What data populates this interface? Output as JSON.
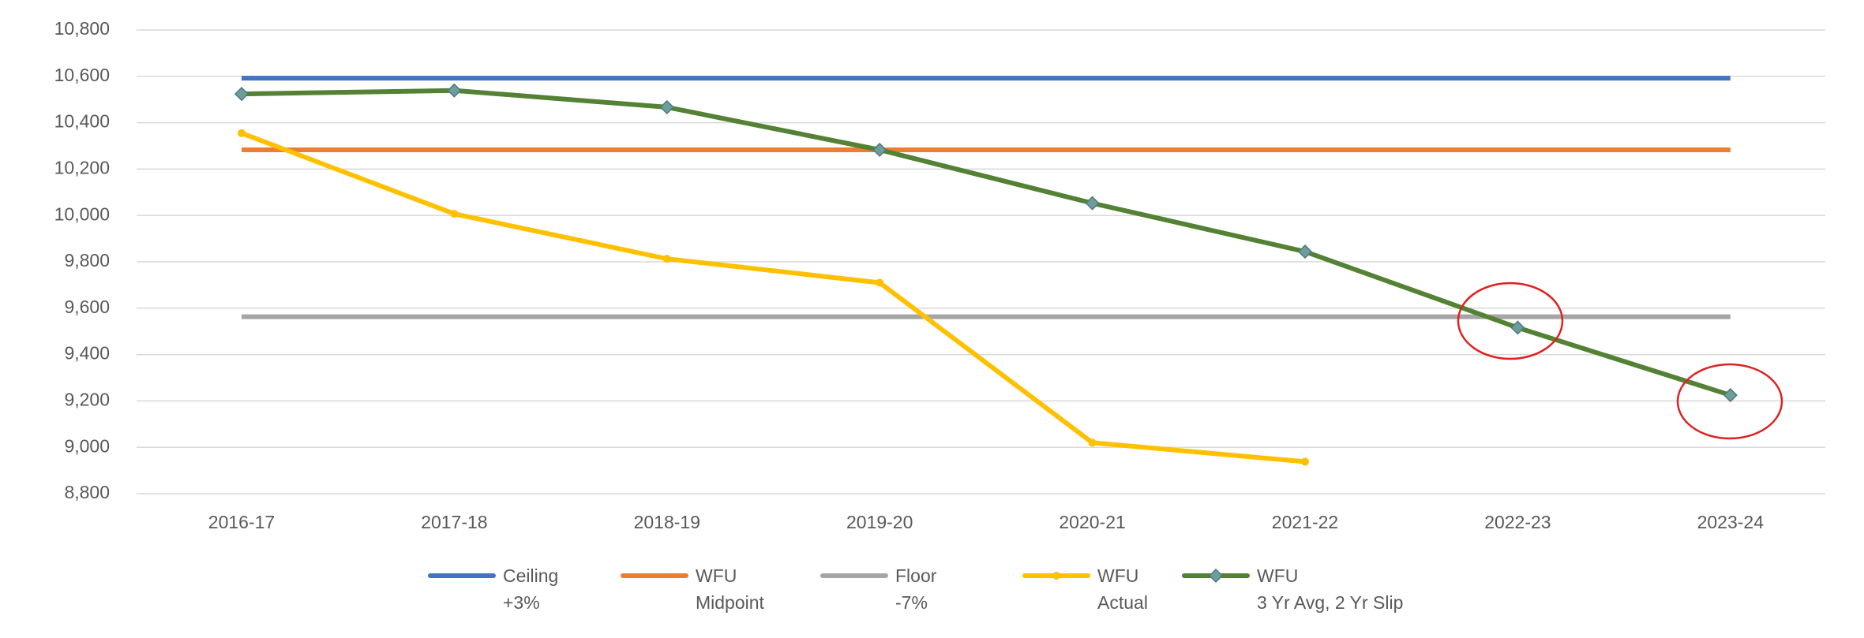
{
  "chart_data": {
    "type": "line",
    "categories": [
      "2016-17",
      "2017-18",
      "2018-19",
      "2019-20",
      "2020-21",
      "2021-22",
      "2022-23",
      "2023-24"
    ],
    "ylim": [
      8800,
      10800
    ],
    "yticks": [
      {
        "value": 8800,
        "label": "8,800"
      },
      {
        "value": 9000,
        "label": "9,000"
      },
      {
        "value": 9200,
        "label": "9,200"
      },
      {
        "value": 9400,
        "label": "9,400"
      },
      {
        "value": 9600,
        "label": "9,600"
      },
      {
        "value": 9800,
        "label": "9,800"
      },
      {
        "value": 10000,
        "label": "10,000"
      },
      {
        "value": 10200,
        "label": "10,200"
      },
      {
        "value": 10400,
        "label": "10,400"
      },
      {
        "value": 10600,
        "label": "10,600"
      },
      {
        "value": 10800,
        "label": "10,800"
      }
    ],
    "grid": true,
    "legend": "bottom",
    "series": [
      {
        "name": "Ceiling\n+3%",
        "color": "#4472c4",
        "values": [
          10592,
          10592,
          10592,
          10592,
          10592,
          10592,
          10592,
          10592
        ]
      },
      {
        "name": "WFU\nMidpoint",
        "color": "#ed7d31",
        "values": [
          10283,
          10283,
          10283,
          10283,
          10283,
          10283,
          10283,
          10283
        ]
      },
      {
        "name": "Floor\n-7%",
        "color": "#a5a5a5",
        "values": [
          9563,
          9563,
          9563,
          9563,
          9563,
          9563,
          9563,
          9563
        ]
      },
      {
        "name": "WFU\nActual",
        "color": "#ffc000",
        "values": [
          10355,
          10007,
          9813,
          9710,
          9020,
          8938,
          null,
          null
        ]
      },
      {
        "name": "WFU\n3 Yr Avg, 2 Yr Slip",
        "color": "#548235",
        "marker": "diamond",
        "values": [
          10524,
          10539,
          10467,
          10283,
          10053,
          9844,
          9516,
          9225
        ]
      }
    ]
  }
}
